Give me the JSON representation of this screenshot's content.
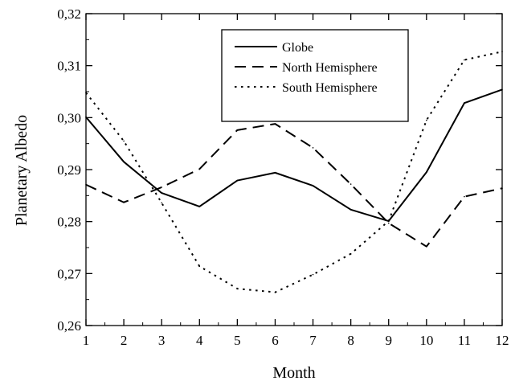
{
  "chart_data": {
    "type": "line",
    "xlabel": "Month",
    "ylabel": "Planetary Albedo",
    "x": [
      1,
      2,
      3,
      4,
      5,
      6,
      7,
      8,
      9,
      10,
      11,
      12
    ],
    "xticks": [
      "1",
      "2",
      "3",
      "4",
      "5",
      "6",
      "7",
      "8",
      "9",
      "10",
      "11",
      "12"
    ],
    "xlim": [
      1,
      12
    ],
    "ylim": [
      0.26,
      0.32
    ],
    "yticks": [
      0.26,
      0.27,
      0.28,
      0.29,
      0.3,
      0.31,
      0.32
    ],
    "ytick_labels": [
      "0,26",
      "0,27",
      "0,28",
      "0,29",
      "0,30",
      "0,31",
      "0,32"
    ],
    "grid": false,
    "legend_position": "top-right",
    "series": [
      {
        "name": "Globe",
        "line_style": "solid",
        "color": "#000000",
        "values": [
          0.3001,
          0.2915,
          0.2855,
          0.2829,
          0.2879,
          0.2894,
          0.2869,
          0.2823,
          0.2801,
          0.2895,
          0.3028,
          0.3054
        ]
      },
      {
        "name": "North Hemisphere",
        "line_style": "dashed",
        "color": "#000000",
        "values": [
          0.2871,
          0.2837,
          0.2866,
          0.2901,
          0.2976,
          0.2988,
          0.2942,
          0.2872,
          0.2797,
          0.2752,
          0.2848,
          0.2864
        ]
      },
      {
        "name": "South Hemisphere",
        "line_style": "dotted",
        "color": "#000000",
        "values": [
          0.3048,
          0.2955,
          0.2836,
          0.2714,
          0.2671,
          0.2664,
          0.2698,
          0.2738,
          0.2801,
          0.2995,
          0.3111,
          0.3127
        ]
      }
    ]
  }
}
